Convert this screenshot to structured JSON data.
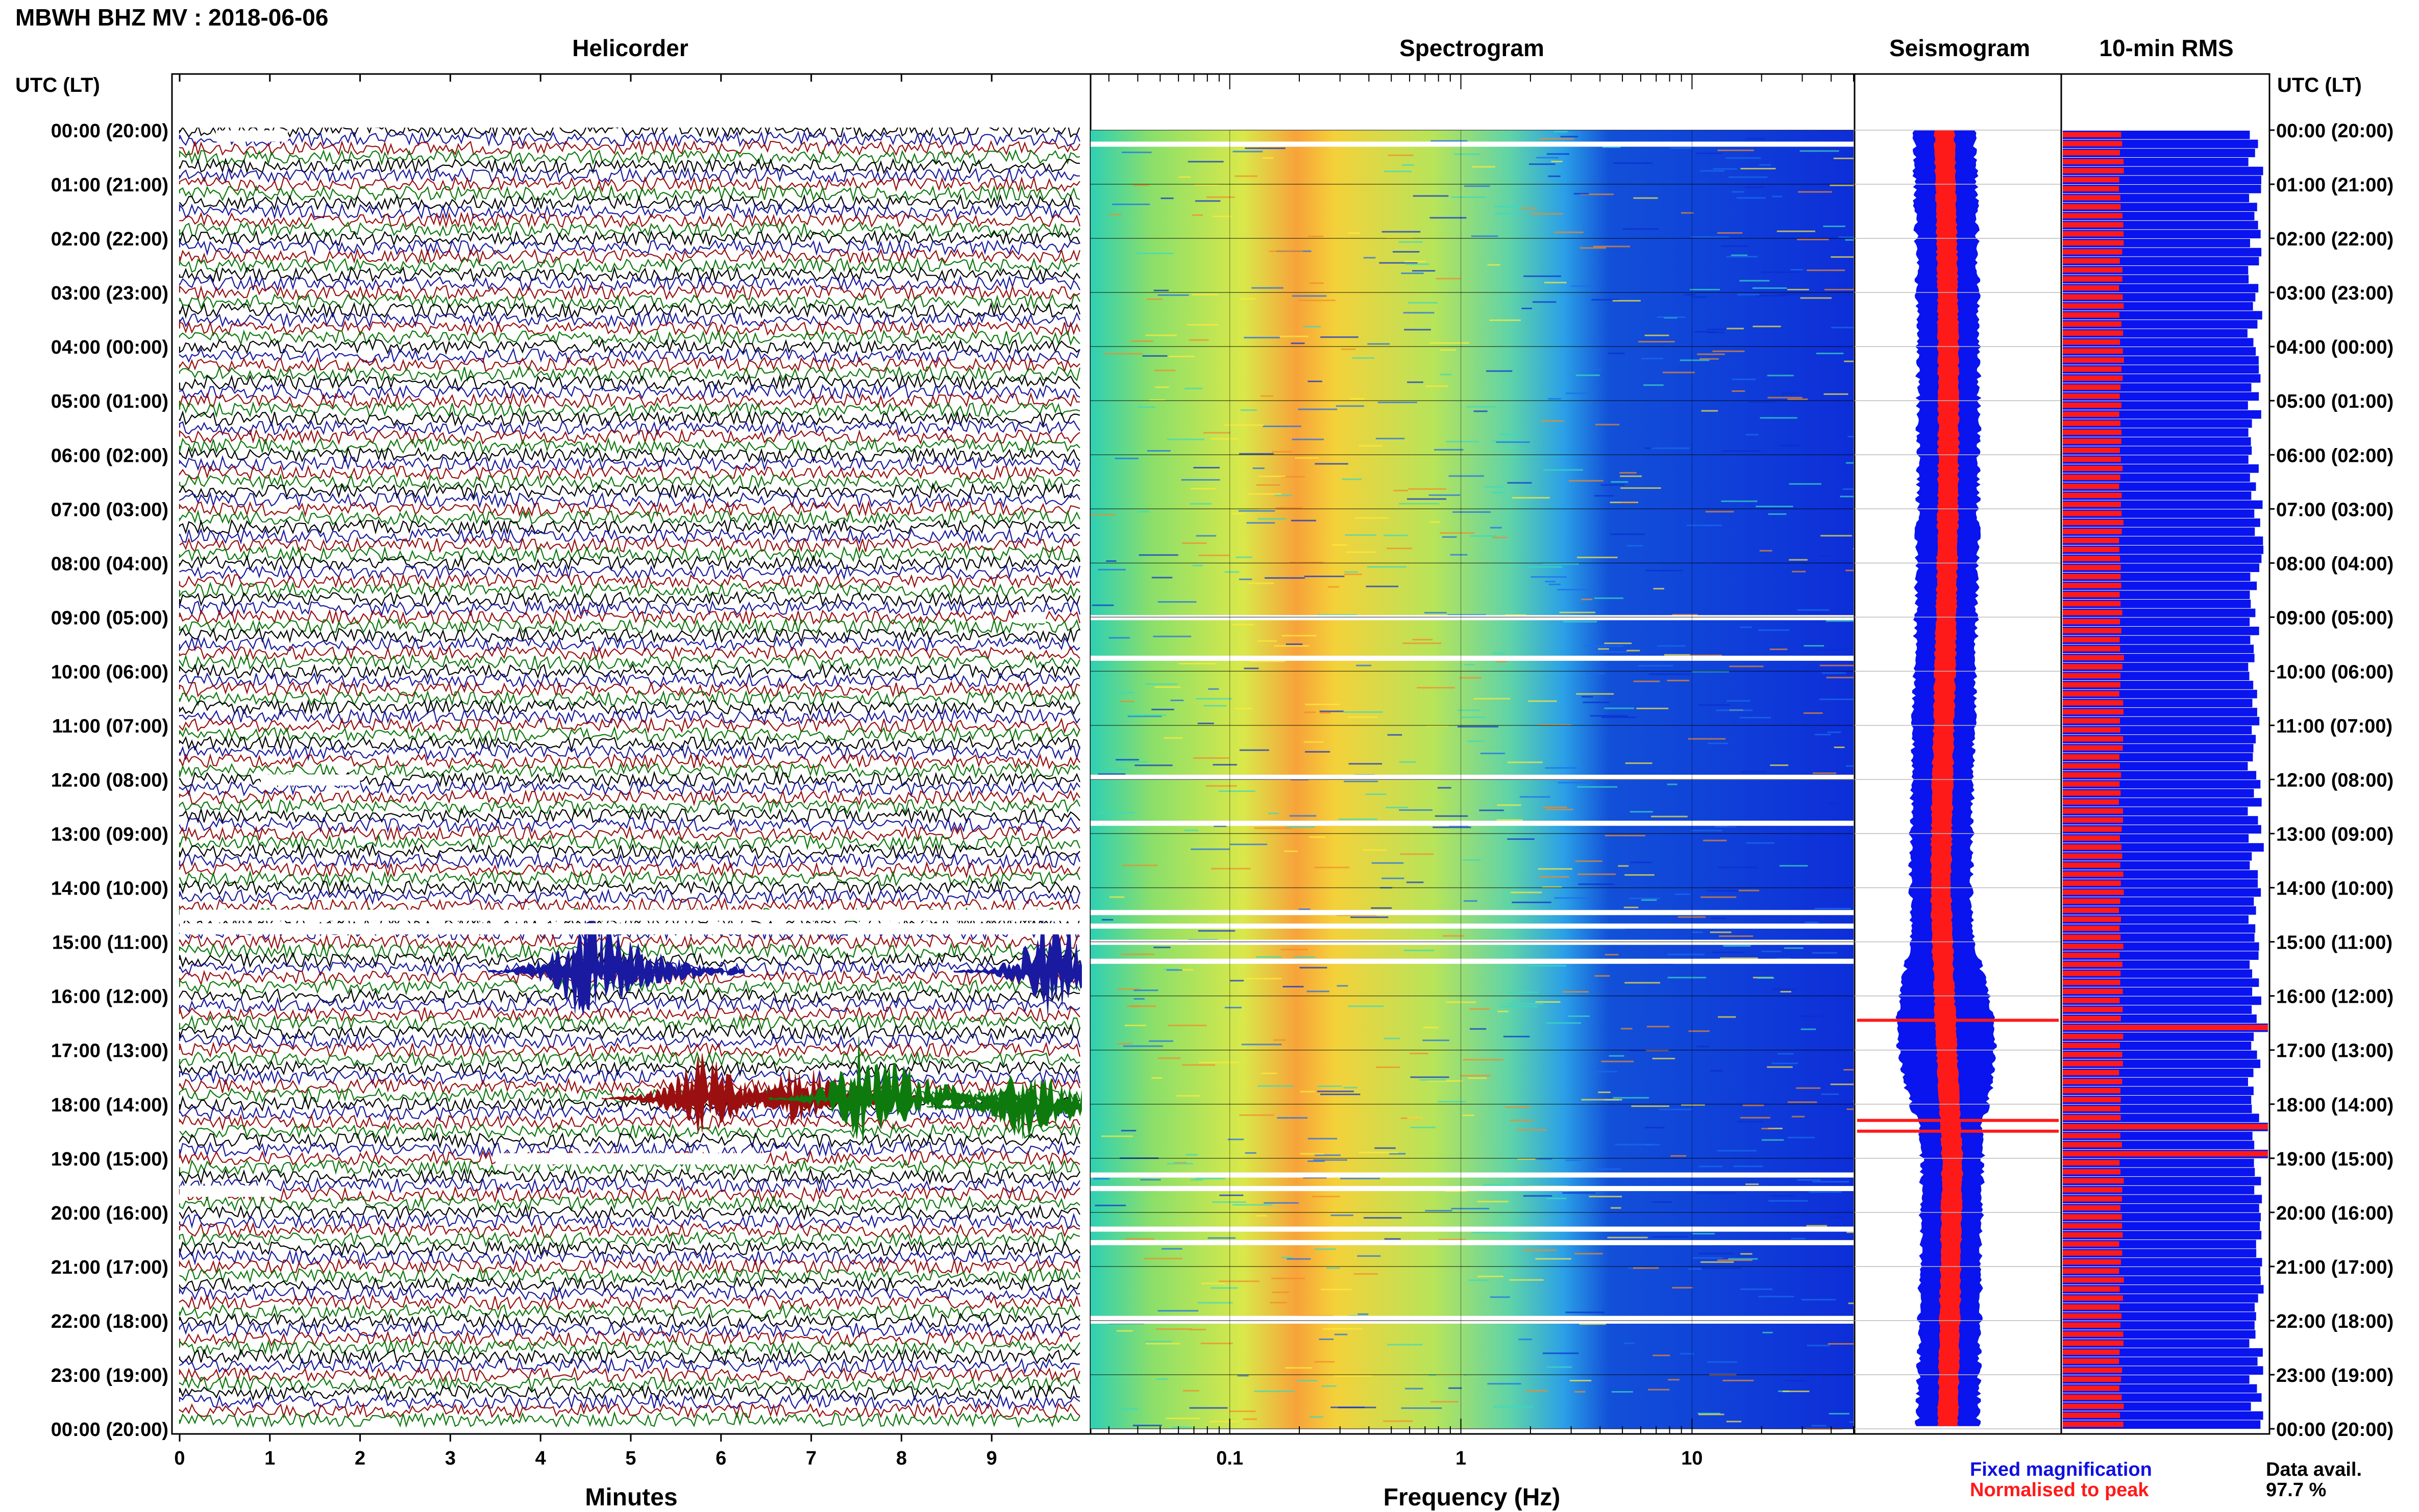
{
  "header": {
    "title": "MBWH BHZ MV : 2018-06-06"
  },
  "panels": {
    "helicorder": "Helicorder",
    "spectrogram": "Spectrogram",
    "seismogram": "Seismogram",
    "rms": "10-min RMS"
  },
  "axis_header_left": "UTC (LT)",
  "axis_header_right": "UTC (LT)",
  "time_labels": [
    "00:00 (20:00)",
    "01:00 (21:00)",
    "02:00 (22:00)",
    "03:00 (23:00)",
    "04:00 (00:00)",
    "05:00 (01:00)",
    "06:00 (02:00)",
    "07:00 (03:00)",
    "08:00 (04:00)",
    "09:00 (05:00)",
    "10:00 (06:00)",
    "11:00 (07:00)",
    "12:00 (08:00)",
    "13:00 (09:00)",
    "14:00 (10:00)",
    "15:00 (11:00)",
    "16:00 (12:00)",
    "17:00 (13:00)",
    "18:00 (14:00)",
    "19:00 (15:00)",
    "20:00 (16:00)",
    "21:00 (17:00)",
    "22:00 (18:00)",
    "23:00 (19:00)",
    "00:00 (20:00)"
  ],
  "helicorder_ticks": [
    "0",
    "1",
    "2",
    "3",
    "4",
    "5",
    "6",
    "7",
    "8",
    "9"
  ],
  "helicorder_xlabel": "Minutes",
  "spectrogram_ticks": [
    "0.1",
    "1",
    "10"
  ],
  "spectrogram_xlabel": "Frequency (Hz)",
  "legend": {
    "fixed": "Fixed magnification",
    "normalised": "Normalised to peak",
    "fixed_color": "#1010e0",
    "normalised_color": "#ff1a1a"
  },
  "availability": {
    "label": "Data avail.",
    "value": "97.7 %"
  },
  "colors": {
    "trace_cycle": [
      "#000000",
      "#1a1aa0",
      "#9a1010",
      "#0e7a0e"
    ],
    "bar_fixed": "#0a14ee",
    "bar_norm": "#ff1a1a"
  },
  "chart_data": {
    "type": "heatmap",
    "station": "MBWH",
    "channel": "BHZ",
    "network": "MV",
    "date": "2018-06-06",
    "utc_hours": [
      0,
      1,
      2,
      3,
      4,
      5,
      6,
      7,
      8,
      9,
      10,
      11,
      12,
      13,
      14,
      15,
      16,
      17,
      18,
      19,
      20,
      21,
      22,
      23,
      24
    ],
    "helicorder_minutes_range": [
      0,
      10
    ],
    "spectrogram_frequency_range_hz": [
      0.025,
      50
    ],
    "spectrogram_scale": "log",
    "spectrogram_peak_band_hz": [
      0.2,
      0.3
    ],
    "data_availability_percent": 97.7,
    "events_utc": [
      "15:30",
      "16:50",
      "17:50",
      "18:05",
      "18:20",
      "18:40"
    ],
    "gaps_utc": [
      "00:10",
      "09:00",
      "09:40",
      "12:00",
      "12:50",
      "14:30",
      "14:45",
      "15:00",
      "19:00",
      "19:40",
      "20:30",
      "22:00"
    ]
  }
}
